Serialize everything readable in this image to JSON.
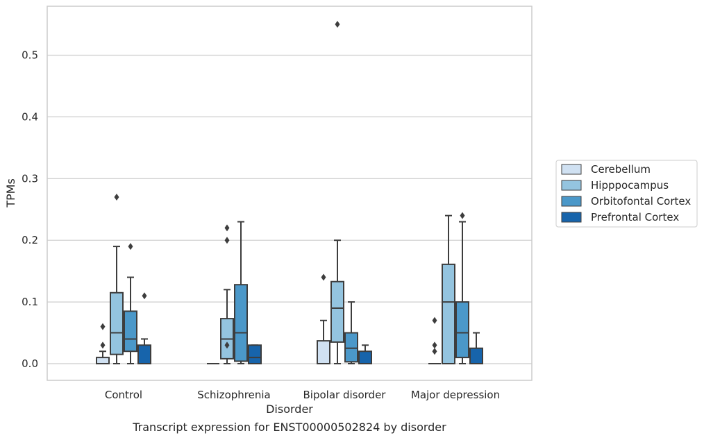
{
  "chart_data": {
    "type": "box",
    "title": "",
    "caption": "Transcript expression for ENST00000502824 by disorder",
    "xlabel": "Disorder",
    "ylabel": "TPMs",
    "ylim": [
      -0.028,
      0.58
    ],
    "yticks": [
      0.0,
      0.1,
      0.2,
      0.3,
      0.4,
      0.5
    ],
    "ytick_labels": [
      "0.0",
      "0.1",
      "0.2",
      "0.3",
      "0.4",
      "0.5"
    ],
    "grid": "horizontal",
    "legend_position": "right",
    "categories": [
      "Control",
      "Schizophrenia",
      "Bipolar disorder",
      "Major depression"
    ],
    "series": [
      {
        "name": "Cerebellum",
        "color": "#d0e1f2",
        "boxes": [
          {
            "whisker_low": 0.0,
            "q1": 0.0,
            "median": 0.0,
            "q3": 0.01,
            "whisker_high": 0.02,
            "outliers": [
              0.03,
              0.06
            ]
          },
          {
            "whisker_low": 0.0,
            "q1": 0.0,
            "median": 0.0,
            "q3": 0.0,
            "whisker_high": 0.0,
            "outliers": []
          },
          {
            "whisker_low": 0.0,
            "q1": 0.0,
            "median": 0.0,
            "q3": 0.037,
            "whisker_high": 0.07,
            "outliers": [
              0.14
            ]
          },
          {
            "whisker_low": 0.0,
            "q1": 0.0,
            "median": 0.0,
            "q3": 0.0,
            "whisker_high": 0.0,
            "outliers": [
              0.02,
              0.03,
              0.07
            ]
          }
        ]
      },
      {
        "name": "Hipppocampus",
        "color": "#94c4df",
        "boxes": [
          {
            "whisker_low": 0.0,
            "q1": 0.015,
            "median": 0.05,
            "q3": 0.115,
            "whisker_high": 0.19,
            "outliers": [
              0.27
            ]
          },
          {
            "whisker_low": 0.0,
            "q1": 0.008,
            "median": 0.04,
            "q3": 0.073,
            "whisker_high": 0.12,
            "outliers": [
              0.03,
              0.2,
              0.22
            ]
          },
          {
            "whisker_low": 0.0,
            "q1": 0.035,
            "median": 0.09,
            "q3": 0.133,
            "whisker_high": 0.2,
            "outliers": [
              0.55
            ]
          },
          {
            "whisker_low": 0.0,
            "q1": 0.0,
            "median": 0.1,
            "q3": 0.161,
            "whisker_high": 0.24,
            "outliers": []
          }
        ]
      },
      {
        "name": "Orbitofontal Cortex",
        "color": "#4b98c9",
        "boxes": [
          {
            "whisker_low": 0.0,
            "q1": 0.02,
            "median": 0.04,
            "q3": 0.085,
            "whisker_high": 0.14,
            "outliers": [
              0.19
            ]
          },
          {
            "whisker_low": 0.0,
            "q1": 0.004,
            "median": 0.05,
            "q3": 0.128,
            "whisker_high": 0.23,
            "outliers": []
          },
          {
            "whisker_low": 0.0,
            "q1": 0.003,
            "median": 0.025,
            "q3": 0.05,
            "whisker_high": 0.1,
            "outliers": []
          },
          {
            "whisker_low": 0.0,
            "q1": 0.01,
            "median": 0.05,
            "q3": 0.1,
            "whisker_high": 0.23,
            "outliers": [
              0.24
            ]
          }
        ]
      },
      {
        "name": "Prefrontal Cortex",
        "color": "#1764ab",
        "boxes": [
          {
            "whisker_low": 0.0,
            "q1": 0.0,
            "median": 0.0,
            "q3": 0.03,
            "whisker_high": 0.04,
            "outliers": [
              0.11
            ]
          },
          {
            "whisker_low": 0.0,
            "q1": 0.0,
            "median": 0.01,
            "q3": 0.03,
            "whisker_high": 0.03,
            "outliers": []
          },
          {
            "whisker_low": 0.0,
            "q1": 0.0,
            "median": 0.0,
            "q3": 0.02,
            "whisker_high": 0.03,
            "outliers": []
          },
          {
            "whisker_low": 0.0,
            "q1": 0.0,
            "median": 0.0,
            "q3": 0.025,
            "whisker_high": 0.05,
            "outliers": []
          }
        ]
      }
    ]
  }
}
